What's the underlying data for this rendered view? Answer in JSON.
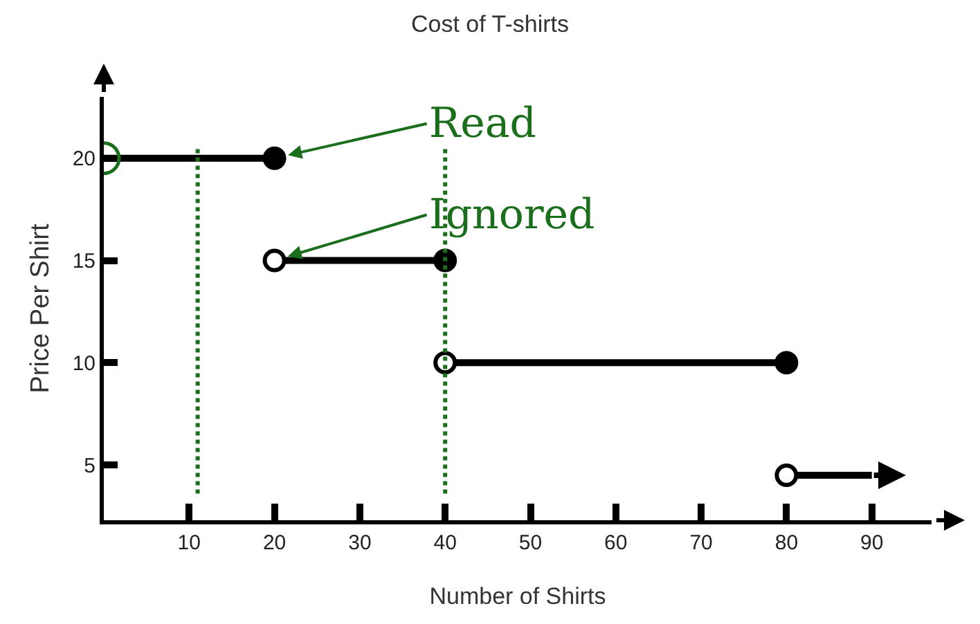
{
  "chart_data": {
    "type": "line",
    "title": "Cost of T-shirts",
    "xlabel": "Number of Shirts",
    "ylabel": "Price Per Shirt",
    "series": [
      {
        "color": "#000000",
        "x": [
          0,
          20
        ],
        "values": [
          20,
          20
        ]
      },
      {
        "color": "#000000",
        "x": [
          20,
          40
        ],
        "values": [
          15,
          15
        ]
      },
      {
        "color": "#000000",
        "x": [
          40,
          80
        ],
        "values": [
          10,
          10
        ]
      },
      {
        "color": "#000000",
        "x": [
          80,
          90
        ],
        "values": [
          4.5,
          4.5
        ]
      },
      {
        "type": "scatter",
        "color": "#000000",
        "x": [
          20,
          40,
          80
        ],
        "values": [
          20,
          15,
          10
        ],
        "marker": "circle"
      },
      {
        "type": "scatter",
        "color": "#ffffff",
        "x": [
          20,
          40,
          80
        ],
        "values": [
          15,
          10,
          4.5
        ],
        "marker": "circle"
      }
    ],
    "xlim": [
      0,
      97
    ],
    "xticks": [
      10,
      20,
      30,
      40,
      50,
      60,
      70,
      80,
      90
    ],
    "ylim": [
      2.3,
      23
    ],
    "yticks": [
      5,
      10,
      15,
      20
    ],
    "ref_lines": [
      {
        "axis": "x",
        "value": 11,
        "color": "#1b6e1b",
        "line_style": "dotted"
      },
      {
        "axis": "x",
        "value": 40,
        "color": "#1b6e1b",
        "line_style": "dotted"
      }
    ],
    "annotations": [
      {
        "text": "Read",
        "x": 20,
        "y": 20
      },
      {
        "text": "Ignored",
        "x": 20,
        "y": 15
      }
    ]
  }
}
